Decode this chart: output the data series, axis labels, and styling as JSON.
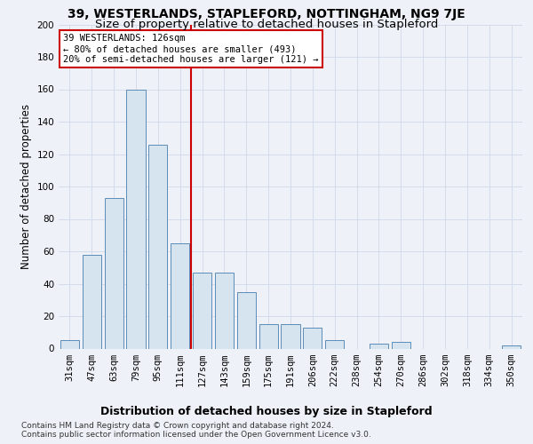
{
  "title": "39, WESTERLANDS, STAPLEFORD, NOTTINGHAM, NG9 7JE",
  "subtitle": "Size of property relative to detached houses in Stapleford",
  "xlabel": "Distribution of detached houses by size in Stapleford",
  "ylabel": "Number of detached properties",
  "bar_color": "#d6e4f0",
  "bar_edge_color": "#5b8db8",
  "categories": [
    "31sqm",
    "47sqm",
    "63sqm",
    "79sqm",
    "95sqm",
    "111sqm",
    "127sqm",
    "143sqm",
    "159sqm",
    "175sqm",
    "191sqm",
    "206sqm",
    "222sqm",
    "238sqm",
    "254sqm",
    "270sqm",
    "286sqm",
    "302sqm",
    "318sqm",
    "334sqm",
    "350sqm"
  ],
  "values": [
    5,
    58,
    93,
    160,
    126,
    65,
    47,
    47,
    35,
    15,
    15,
    13,
    5,
    0,
    3,
    4,
    0,
    0,
    0,
    0,
    2
  ],
  "ylim": [
    0,
    200
  ],
  "yticks": [
    0,
    20,
    40,
    60,
    80,
    100,
    120,
    140,
    160,
    180,
    200
  ],
  "vline_x_index": 5.5,
  "vline_color": "#cc0000",
  "annotation_line1": "39 WESTERLANDS: 126sqm",
  "annotation_line2": "← 80% of detached houses are smaller (493)",
  "annotation_line3": "20% of semi-detached houses are larger (121) →",
  "annotation_box_color": "#ffffff",
  "annotation_box_edge_color": "#cc0000",
  "footer1": "Contains HM Land Registry data © Crown copyright and database right 2024.",
  "footer2": "Contains public sector information licensed under the Open Government Licence v3.0.",
  "background_color": "#eef2f8",
  "grid_color": "#d0d8e8",
  "title_fontsize": 10,
  "subtitle_fontsize": 9.5,
  "ylabel_fontsize": 8.5,
  "xlabel_fontsize": 9,
  "tick_fontsize": 7.5,
  "annotation_fontsize": 7.5,
  "footer_fontsize": 6.5
}
